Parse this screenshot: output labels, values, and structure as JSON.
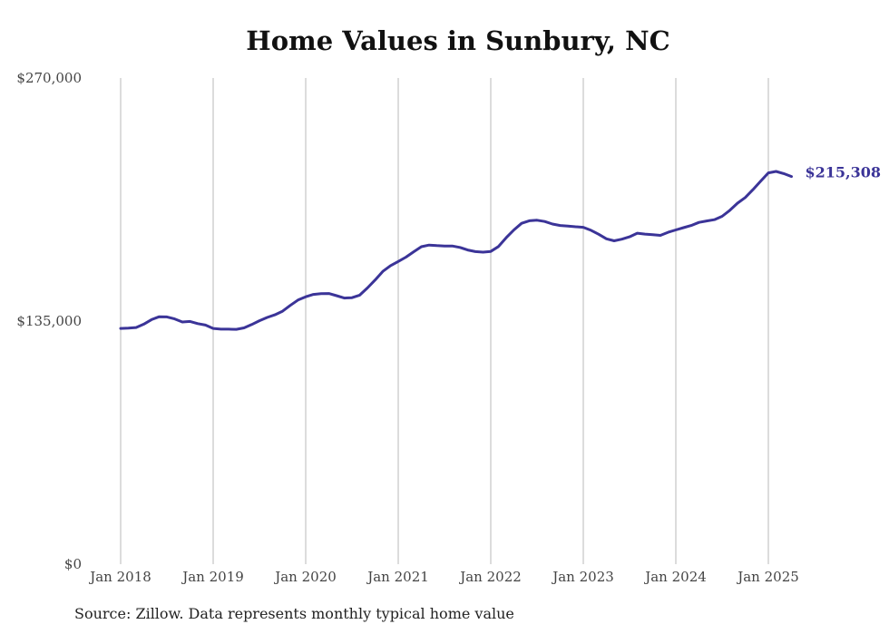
{
  "title": "Home Values in Sunbury, NC",
  "source": "Source: Zillow. Data represents monthly typical home value",
  "chart_data": {
    "type": "line",
    "title": "Home Values in Sunbury, NC",
    "xlabel": "",
    "ylabel": "",
    "x_ticks": [
      "Jan 2018",
      "Jan 2019",
      "Jan 2020",
      "Jan 2021",
      "Jan 2022",
      "Jan 2023",
      "Jan 2024",
      "Jan 2025"
    ],
    "y_ticks": [
      "$0",
      "$135,000",
      "$270,000"
    ],
    "y_tick_values": [
      0,
      135000,
      270000
    ],
    "ylim": [
      0,
      270000
    ],
    "xlim": [
      "2018-01",
      "2025-04"
    ],
    "grid": "vertical lines at each January",
    "legend": "none",
    "end_label": "$215,308",
    "colors": {
      "line": "#3b3498",
      "grid": "#b8b8b8",
      "end_label": "#3b3498"
    },
    "series": [
      {
        "x": [
          "2018-01",
          "2018-02",
          "2018-03",
          "2018-04",
          "2018-05",
          "2018-06",
          "2018-07",
          "2018-08",
          "2018-09",
          "2018-10",
          "2018-11",
          "2018-12",
          "2019-01",
          "2019-02",
          "2019-03",
          "2019-04",
          "2019-05",
          "2019-06",
          "2019-07",
          "2019-08",
          "2019-09",
          "2019-10",
          "2019-11",
          "2019-12",
          "2020-01",
          "2020-02",
          "2020-03",
          "2020-04",
          "2020-05",
          "2020-06",
          "2020-07",
          "2020-08",
          "2020-09",
          "2020-10",
          "2020-11",
          "2020-12",
          "2021-01",
          "2021-02",
          "2021-03",
          "2021-04",
          "2021-05",
          "2021-06",
          "2021-07",
          "2021-08",
          "2021-09",
          "2021-10",
          "2021-11",
          "2021-12",
          "2022-01",
          "2022-02",
          "2022-03",
          "2022-04",
          "2022-05",
          "2022-06",
          "2022-07",
          "2022-08",
          "2022-09",
          "2022-10",
          "2022-11",
          "2022-12",
          "2023-01",
          "2023-02",
          "2023-03",
          "2023-04",
          "2023-05",
          "2023-06",
          "2023-07",
          "2023-08",
          "2023-09",
          "2023-10",
          "2023-11",
          "2023-12",
          "2024-01",
          "2024-02",
          "2024-03",
          "2024-04",
          "2024-05",
          "2024-06",
          "2024-07",
          "2024-08",
          "2024-09",
          "2024-10",
          "2024-11",
          "2024-12",
          "2025-01",
          "2025-02",
          "2025-03",
          "2025-04"
        ],
        "values": [
          130900,
          131100,
          131400,
          133300,
          135800,
          137400,
          137300,
          136200,
          134500,
          134800,
          133600,
          132800,
          130900,
          130500,
          130500,
          130400,
          131200,
          133100,
          135200,
          137000,
          138500,
          140500,
          143700,
          146700,
          148500,
          149800,
          150200,
          150300,
          149100,
          147800,
          148000,
          149400,
          153400,
          157800,
          162600,
          165800,
          168100,
          170500,
          173500,
          176300,
          177200,
          176900,
          176700,
          176700,
          175900,
          174500,
          173600,
          173300,
          173700,
          176400,
          181300,
          185600,
          189300,
          190700,
          191000,
          190300,
          188900,
          188100,
          187800,
          187400,
          187100,
          185400,
          183200,
          180700,
          179600,
          180500,
          181800,
          183800,
          183300,
          183000,
          182600,
          184300,
          185600,
          186900,
          188100,
          189800,
          190600,
          191300,
          193200,
          196500,
          200500,
          203600,
          208000,
          212700,
          217300,
          218100,
          216900,
          215308
        ]
      }
    ]
  }
}
